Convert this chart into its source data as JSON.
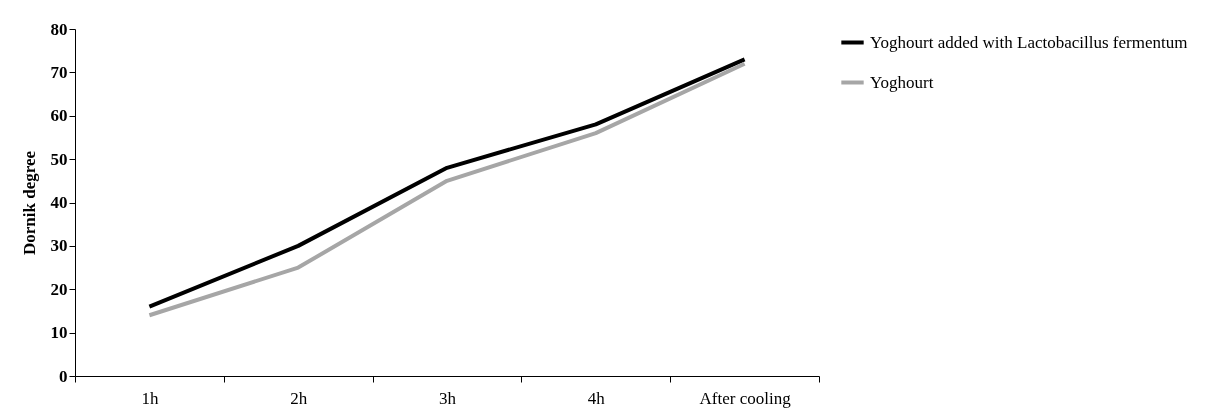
{
  "chart_data": {
    "type": "line",
    "ylabel": "Dornik degree",
    "categories": [
      "1h",
      "2h",
      "3h",
      "4h",
      "After cooling"
    ],
    "series": [
      {
        "name": "Yoghourt added with Lactobacillus fermentum",
        "color": "#000000",
        "values": [
          16,
          30,
          48,
          58,
          73
        ]
      },
      {
        "name": "Yoghourt",
        "color": "#a6a6a6",
        "values": [
          14,
          25,
          45,
          56,
          72
        ]
      }
    ],
    "ylim": [
      0,
      80
    ],
    "yticks": [
      0,
      10,
      20,
      30,
      40,
      50,
      60,
      70,
      80
    ],
    "grid": false,
    "legend": "right",
    "marker": "none",
    "line_style": "solid"
  }
}
